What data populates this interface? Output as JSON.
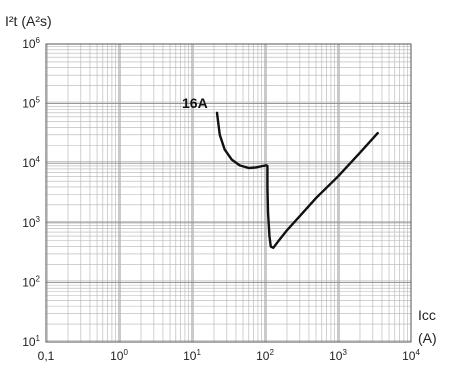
{
  "chart_data": {
    "type": "line",
    "title": "",
    "ylabel": "I²t (A²s)",
    "xlabel": "Icc (A)",
    "xlabel_lines": [
      "Icc",
      "(A)"
    ],
    "x_scale": "log",
    "y_scale": "log",
    "xlim": [
      0.1,
      10000
    ],
    "ylim": [
      10,
      1000000
    ],
    "grid": true,
    "x_ticks": [
      {
        "value": 0.1,
        "base": "0,1",
        "exp": ""
      },
      {
        "value": 1,
        "base": "10",
        "exp": "0"
      },
      {
        "value": 10,
        "base": "10",
        "exp": "1"
      },
      {
        "value": 100,
        "base": "10",
        "exp": "2"
      },
      {
        "value": 1000,
        "base": "10",
        "exp": "3"
      },
      {
        "value": 10000,
        "base": "10",
        "exp": "4"
      }
    ],
    "y_ticks": [
      {
        "value": 10,
        "base": "10",
        "exp": "1"
      },
      {
        "value": 100,
        "base": "10",
        "exp": "2"
      },
      {
        "value": 1000,
        "base": "10",
        "exp": "3"
      },
      {
        "value": 10000,
        "base": "10",
        "exp": "4"
      },
      {
        "value": 100000,
        "base": "10",
        "exp": "5"
      },
      {
        "value": 1000000,
        "base": "10",
        "exp": "6"
      }
    ],
    "series": [
      {
        "name": "16A",
        "color": "#111111",
        "points": [
          [
            22,
            70000
          ],
          [
            24,
            30000
          ],
          [
            28,
            17000
          ],
          [
            35,
            11500
          ],
          [
            45,
            9200
          ],
          [
            60,
            8300
          ],
          [
            75,
            8500
          ],
          [
            90,
            8900
          ],
          [
            105,
            9200
          ],
          [
            108,
            9000
          ],
          [
            108,
            4000
          ],
          [
            110,
            1500
          ],
          [
            115,
            600
          ],
          [
            120,
            400
          ],
          [
            130,
            380
          ],
          [
            150,
            480
          ],
          [
            200,
            750
          ],
          [
            300,
            1300
          ],
          [
            500,
            2600
          ],
          [
            1000,
            6000
          ],
          [
            2000,
            15000
          ],
          [
            3500,
            32000
          ]
        ]
      }
    ]
  }
}
